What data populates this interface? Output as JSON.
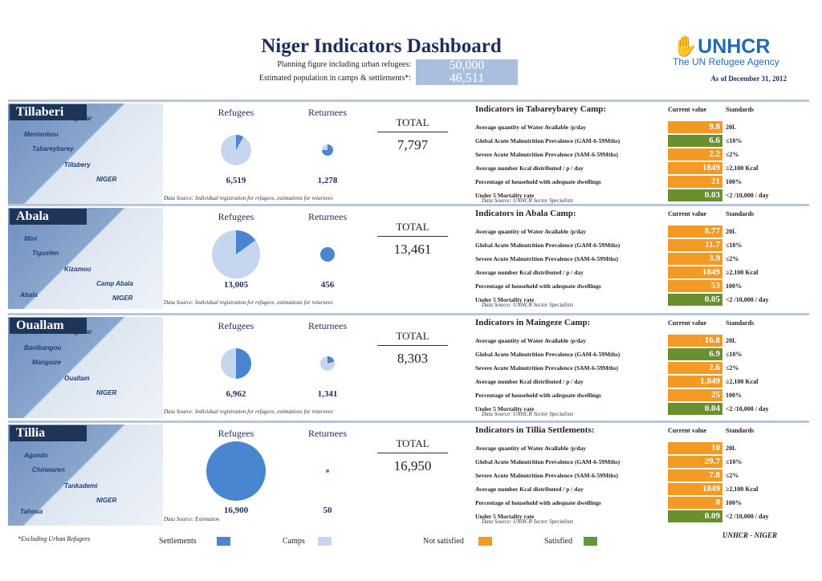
{
  "header": {
    "title": "Niger Indicators Dashboard",
    "planning_label": "Planning figure including urban refugees:",
    "planning_value": "50,000",
    "estimated_label": "Estimated population in camps & settlements*:",
    "estimated_value": "46,511",
    "logo_name": "UNHCR",
    "logo_sub": "The UN Refugee Agency",
    "as_of": "As of December 31, 2012"
  },
  "colors": {
    "settlements": "#4a86cf",
    "camps": "#c5d6ee",
    "not_satisfied": "#f39a24",
    "satisfied": "#6a8f2e",
    "navy": "#1f3558"
  },
  "labels": {
    "refugees": "Refugees",
    "returnees": "Returnees",
    "total": "TOTAL",
    "current": "Current value",
    "standards": "Standards"
  },
  "regions": [
    {
      "name": "Tillaberi",
      "map_places": [
        "Chinegodar",
        "Mentanbou",
        "Tabareybarey",
        "Tillabery",
        "NIGER"
      ],
      "refugees": "6,519",
      "returnees": "1,278",
      "ref_settlement_share": 0.08,
      "ret_settlement_share": 0.75,
      "total": "7,797",
      "source": "Data Source: Individual registration for refugees, estimations for returnees",
      "ind_title": "Indicators in Tabareybarey Camp:",
      "ind_source": "Data Source: UNHCR Sector Specialists",
      "indicators": [
        {
          "label": "Average quantity of Water Available /p/day",
          "value": "9.8",
          "standard": "20L",
          "status": "not_satisfied"
        },
        {
          "label": "Global Acute Malnutrition Prevalence (GAM-6-59Mths)",
          "value": "6.6",
          "standard": "≤10%",
          "status": "satisfied"
        },
        {
          "label": "Severe Acute Malnutrition Prevalence (SAM-6-59Mths)",
          "value": "2.2",
          "standard": "≤2%",
          "status": "not_satisfied"
        },
        {
          "label": "Average number Kcal distributed / p / day",
          "value": "1849",
          "standard": "≥2,100 Kcal",
          "status": "not_satisfied"
        },
        {
          "label": "Percentage of household with adequate dwellings",
          "value": "21",
          "standard": "100%",
          "status": "not_satisfied"
        },
        {
          "label": "Under 5 Mortality rate",
          "value": "0.03",
          "standard": "<2 /10,000 / day",
          "status": "satisfied"
        }
      ]
    },
    {
      "name": "Abala",
      "map_places": [
        "MALI",
        "Mini",
        "Tiguefen",
        "Kizamou",
        "Camp Abala",
        "Abala",
        "NIGER"
      ],
      "refugees": "13,005",
      "returnees": "456",
      "ref_settlement_share": 0.15,
      "ret_settlement_share": 1.0,
      "total": "13,461",
      "source": "Data Source: Individual registration for refugees, estimations for returnees",
      "ind_title": "Indicators in Abala Camp:",
      "ind_source": "Data Source: UNHCR Sector Specialists",
      "indicators": [
        {
          "label": "Average quantity of Water Available /p/day",
          "value": "8.77",
          "standard": "20L",
          "status": "not_satisfied"
        },
        {
          "label": "Global Acute Malnutrition Prevalence (GAM-6-59Mths)",
          "value": "11.7",
          "standard": "≤10%",
          "status": "not_satisfied"
        },
        {
          "label": "Severe Acute Malnutrition Prevalence (SAM-6-59Mths)",
          "value": "3.9",
          "standard": "≤2%",
          "status": "not_satisfied"
        },
        {
          "label": "Average number Kcal distributed / p / day",
          "value": "1849",
          "standard": "≥2,100 Kcal",
          "status": "not_satisfied"
        },
        {
          "label": "Percentage of household with adequate dwellings",
          "value": "53",
          "standard": "100%",
          "status": "not_satisfied"
        },
        {
          "label": "Under 5 Mortality rate",
          "value": "0.05",
          "standard": "<2 /10,000 / day",
          "status": "satisfied"
        }
      ]
    },
    {
      "name": "Ouallam",
      "map_places": [
        "Chinegodar",
        "Banibangou",
        "Mangaize",
        "Ouallam",
        "NIGER"
      ],
      "refugees": "6,962",
      "returnees": "1,341",
      "ref_settlement_share": 0.5,
      "ret_settlement_share": 0.2,
      "total": "8,303",
      "source": "Data Source: Individual registration for refugees, estimations for returnees",
      "ind_title": "Indicators in Maingeze Camp:",
      "ind_source": "Data Source: UNHCR Sector Specialists",
      "indicators": [
        {
          "label": "Average quantity of Water Available /p/day",
          "value": "16.8",
          "standard": "20L",
          "status": "not_satisfied"
        },
        {
          "label": "Global Acute Malnutrition Prevalence (GAM-6-59Mths)",
          "value": "6.9",
          "standard": "≤10%",
          "status": "satisfied"
        },
        {
          "label": "Severe Acute Malnutrition Prevalence (SAM-6-59Mths)",
          "value": "2.6",
          "standard": "≤2%",
          "status": "not_satisfied"
        },
        {
          "label": "Average number Kcal distributed / p / day",
          "value": "1,849",
          "standard": "≥2,100 Kcal",
          "status": "not_satisfied"
        },
        {
          "label": "Percentage of household with adequate dwellings",
          "value": "25",
          "standard": "100%",
          "status": "not_satisfied"
        },
        {
          "label": "Under 5 Mortality rate",
          "value": "0.04",
          "standard": "<2 /10,000 / day",
          "status": "satisfied"
        }
      ]
    },
    {
      "name": "Tillia",
      "map_places": [
        "MALI",
        "Agando",
        "Chinwaren",
        "Tankademi",
        "NIGER",
        "Tahoua"
      ],
      "refugees": "16,900",
      "returnees": "50",
      "ref_settlement_share": 1.0,
      "ret_settlement_share": 1.0,
      "total": "16,950",
      "source": "Data Source: Estimation",
      "ind_title": "Indicators in Tillia Settlements:",
      "ind_source": "Data Source: UNHCR Sector Specialists",
      "indicators": [
        {
          "label": "Average quantity of Water Available /p/day",
          "value": "10",
          "standard": "20L",
          "status": "not_satisfied"
        },
        {
          "label": "Global Acute Malnutrition Prevalence (GAM-6-59Mths)",
          "value": "29.7",
          "standard": "≤10%",
          "status": "not_satisfied"
        },
        {
          "label": "Severe Acute Malnutrition Prevalence (SAM-6-59Mths)",
          "value": "7.8",
          "standard": "≤2%",
          "status": "not_satisfied"
        },
        {
          "label": "Average number Kcal distributed / p / day",
          "value": "1849",
          "standard": "≥2,100 Kcal",
          "status": "not_satisfied"
        },
        {
          "label": "Percentage of household with adequate dwellings",
          "value": "0",
          "standard": "100%",
          "status": "not_satisfied"
        },
        {
          "label": "Under 5 Mortality rate",
          "value": "0.09",
          "standard": "<2 /10,000 / day",
          "status": "satisfied"
        }
      ]
    }
  ],
  "footer": {
    "note": "*Excluding Urban Refugees",
    "settlements": "Settlements",
    "camps": "Camps",
    "not_satisfied": "Not satisfied",
    "satisfied": "Satisfied",
    "org": "UNHCR - NIGER"
  }
}
